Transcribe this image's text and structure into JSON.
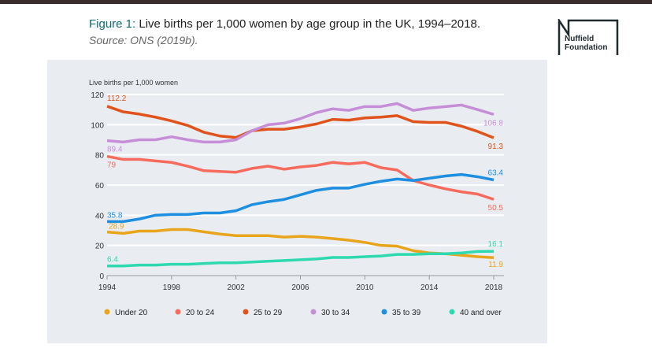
{
  "header": {
    "figure_label": "Figure 1:",
    "title": "Live births per 1,000 women by age group in the UK, 1994–2018.",
    "source": "Source: ONS (2019b).",
    "logo_line1": "Nuffield",
    "logo_line2": "Foundation"
  },
  "chart_data": {
    "type": "line",
    "ylabel": "Live births per 1,000 women",
    "ylim": [
      0,
      120
    ],
    "yticks": [
      0,
      20,
      40,
      60,
      80,
      100,
      120
    ],
    "xticks": [
      1994,
      1998,
      2002,
      2006,
      2010,
      2014,
      2018
    ],
    "x": [
      1994,
      1995,
      1996,
      1997,
      1998,
      1999,
      2000,
      2001,
      2002,
      2003,
      2004,
      2005,
      2006,
      2007,
      2008,
      2009,
      2010,
      2011,
      2012,
      2013,
      2014,
      2015,
      2016,
      2017,
      2018
    ],
    "grid": true,
    "legend_position": "bottom",
    "series": [
      {
        "name": "Under 20",
        "color": "#e8a51c",
        "start_label": "28.9",
        "end_label": "11.9",
        "values": [
          28.9,
          28,
          29.5,
          29.5,
          30.5,
          30.5,
          29,
          27.5,
          26.5,
          26.5,
          26.5,
          25.5,
          26,
          25.5,
          24.5,
          23.5,
          22,
          20,
          19.5,
          16.5,
          15,
          14.5,
          13.5,
          12.5,
          11.9
        ]
      },
      {
        "name": "20 to 24",
        "color": "#f76b5c",
        "start_label": "79",
        "end_label": "50.5",
        "values": [
          79,
          77,
          77,
          76,
          75,
          72.5,
          69.5,
          69,
          68.5,
          71,
          72.5,
          70.5,
          72,
          73,
          75,
          74,
          75,
          71.5,
          70,
          63,
          60,
          57.5,
          55.5,
          54,
          50.5
        ]
      },
      {
        "name": "25 to 29",
        "color": "#e0531a",
        "start_label": "112.2",
        "end_label": "91.3",
        "values": [
          112.2,
          108.5,
          107,
          105,
          102.5,
          99.5,
          95,
          92.5,
          91.5,
          96,
          97,
          97,
          98.5,
          100.5,
          103.5,
          103,
          104.5,
          105,
          106,
          102,
          101.5,
          101.5,
          99,
          95.5,
          91.3
        ]
      },
      {
        "name": "30 to 34",
        "color": "#c58ed6",
        "start_label": "89.4",
        "end_label": "106.8",
        "values": [
          89.4,
          88.5,
          90,
          90,
          92,
          90,
          88.5,
          88.5,
          90,
          96,
          100,
          101,
          104,
          108,
          110.5,
          109.5,
          112,
          112,
          114,
          109.5,
          111,
          112,
          113,
          110,
          106.8
        ]
      },
      {
        "name": "35 to 39",
        "color": "#1e8fe0",
        "start_label": "35.8",
        "end_label": "63.4",
        "values": [
          35.8,
          35.8,
          37.5,
          40,
          40.5,
          40.5,
          41.5,
          41.5,
          43,
          47,
          49,
          50.5,
          53.5,
          56.5,
          58,
          58,
          60.5,
          62.5,
          64,
          63,
          64.5,
          66,
          67,
          65.5,
          63.4
        ]
      },
      {
        "name": "40 and over",
        "color": "#2ed9b0",
        "start_label": "6.4",
        "end_label": "16.1",
        "values": [
          6.4,
          6.4,
          7,
          7,
          7.5,
          7.5,
          8,
          8.5,
          8.5,
          9,
          9.5,
          10,
          10.5,
          11,
          12,
          12,
          12.5,
          13,
          14,
          14,
          14.5,
          14.5,
          15,
          16,
          16.1
        ]
      }
    ]
  }
}
